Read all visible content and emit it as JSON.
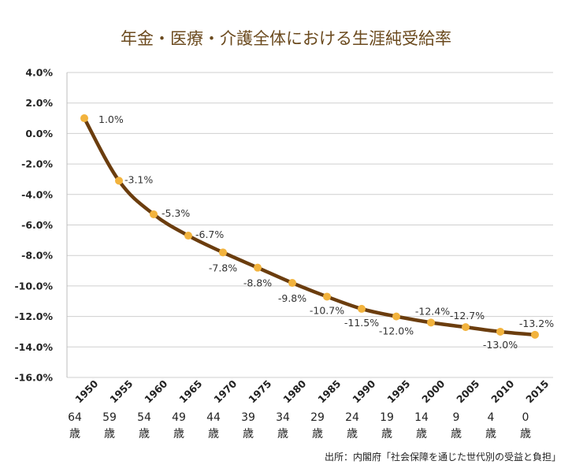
{
  "chart_data": {
    "type": "line",
    "title": "年金・医療・介護全体における生涯純受給率",
    "categories": [
      "1950",
      "1955",
      "1960",
      "1965",
      "1970",
      "1975",
      "1980",
      "1985",
      "1990",
      "1995",
      "2000",
      "2005",
      "2010",
      "2015"
    ],
    "x": [
      1950,
      1955,
      1960,
      1965,
      1970,
      1975,
      1980,
      1985,
      1990,
      1995,
      2000,
      2005,
      2010,
      2015
    ],
    "values": [
      1.0,
      -3.1,
      -5.3,
      -6.7,
      -7.8,
      -8.8,
      -9.8,
      -10.7,
      -11.5,
      -12.0,
      -12.4,
      -12.7,
      -13.0,
      -13.2
    ],
    "data_labels": [
      "1.0%",
      "-3.1%",
      "-5.3%",
      "-6.7%",
      "-7.8%",
      "-8.8%",
      "-9.8%",
      "-10.7%",
      "-11.5%",
      "-12.0%",
      "-12.4%",
      "-12.7%",
      "-13.0%",
      "-13.2%"
    ],
    "ylim": [
      -16,
      4
    ],
    "yticks": [
      "4.0%",
      "2.0%",
      "0.0%",
      "-2.0%",
      "-4.0%",
      "-6.0%",
      "-8.0%",
      "-10.0%",
      "-12.0%",
      "-14.0%",
      "-16.0%"
    ],
    "age_labels": [
      "64",
      "59",
      "54",
      "49",
      "44",
      "39",
      "34",
      "29",
      "24",
      "19",
      "14",
      "9",
      "4",
      "0"
    ],
    "age_unit": "歳",
    "grid": true,
    "line_color": "#6b3d0e",
    "marker_color": "#f2b33d",
    "title_color": "#6b4a1e"
  },
  "source": "出所：内閣府「社会保障を通じた世代別の受益と負担」"
}
